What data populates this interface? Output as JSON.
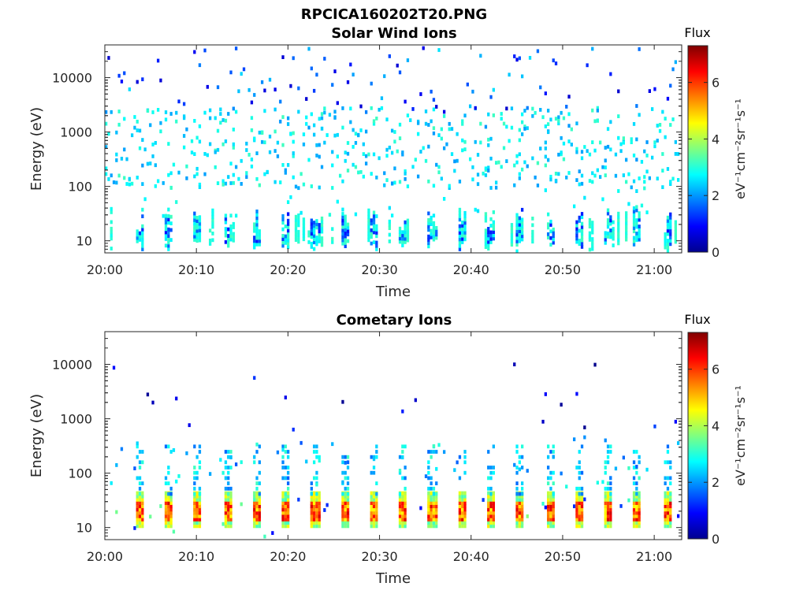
{
  "figure_title": "RPCICA160202T20.PNG",
  "colorbar_label": "Flux",
  "colorbar_unit": "eV⁻¹cm⁻²sr⁻¹s⁻¹",
  "colors": {
    "axis": "#262626",
    "background": "#ffffff"
  },
  "chart_data": [
    {
      "type": "heatmap",
      "title": "Solar Wind Ions",
      "xlabel": "Time",
      "ylabel": "Energy (eV)",
      "x_ticks": [
        "20:00",
        "20:10",
        "20:20",
        "20:30",
        "20:40",
        "20:50",
        "21:00"
      ],
      "xlim": [
        "20:00",
        "21:03"
      ],
      "y_scale": "log",
      "y_ticks": [
        10,
        100,
        1000,
        10000
      ],
      "ylim": [
        6,
        40000
      ],
      "colorbar": {
        "label": "Flux",
        "range": [
          0,
          7.3
        ],
        "ticks": [
          0,
          2,
          4,
          6
        ],
        "colormap": "jet"
      },
      "features": {
        "low_energy_bursts": {
          "energy_range_eV": [
            6,
            40
          ],
          "flux_range": [
            0.8,
            3.5
          ],
          "approx_period_min": 3.2
        },
        "background_band": {
          "energy_range_eV": [
            100,
            3000
          ],
          "flux_range": [
            2,
            3.2
          ]
        },
        "sparse_high_energy": {
          "energy_range_eV": [
            3000,
            40000
          ],
          "flux_range": [
            0.5,
            2.6
          ]
        }
      }
    },
    {
      "type": "heatmap",
      "title": "Cometary Ions",
      "xlabel": "Time",
      "ylabel": "Energy (eV)",
      "x_ticks": [
        "20:00",
        "20:10",
        "20:20",
        "20:30",
        "20:40",
        "20:50",
        "21:00"
      ],
      "xlim": [
        "20:00",
        "21:03"
      ],
      "y_scale": "log",
      "y_ticks": [
        10,
        100,
        1000,
        10000
      ],
      "ylim": [
        6,
        40000
      ],
      "colorbar": {
        "label": "Flux",
        "range": [
          0,
          7.3
        ],
        "ticks": [
          0,
          2,
          4,
          6
        ],
        "colormap": "jet"
      },
      "features": {
        "bursts": {
          "energy_range_eV": [
            10,
            40
          ],
          "peak_flux": 6.5,
          "approx_period_min": 3.2
        },
        "mid_energy_band": {
          "energy_range_eV": [
            60,
            500
          ],
          "flux_range": [
            1.5,
            3.2
          ]
        },
        "sparse_high_energy": {
          "energy_range_eV": [
            500,
            15000
          ],
          "flux_range": [
            0,
            1.5
          ]
        }
      }
    }
  ]
}
